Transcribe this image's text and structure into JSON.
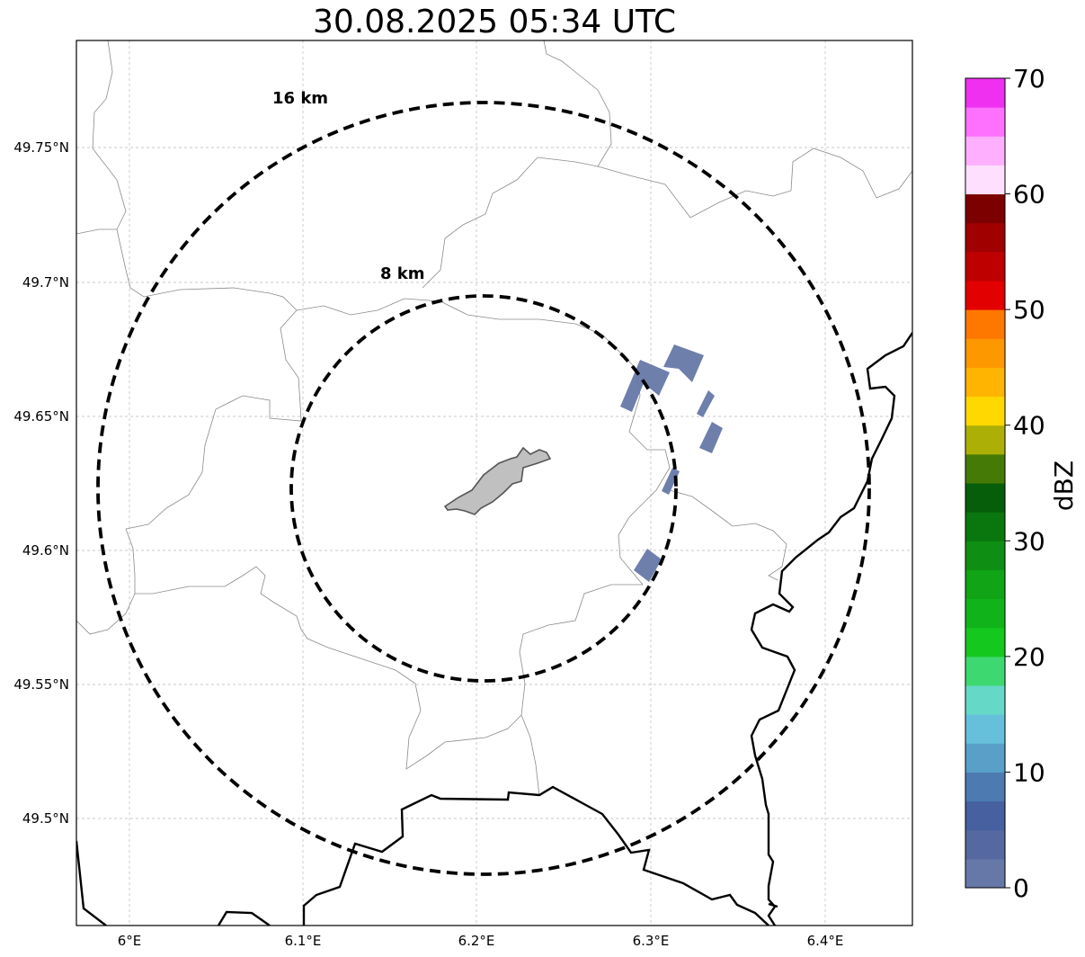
{
  "title": "30.08.2025 05:34 UTC",
  "map": {
    "lat_ticks": [
      "49.75°N",
      "49.7°N",
      "49.65°N",
      "49.6°N",
      "49.55°N",
      "49.5°N"
    ],
    "lon_ticks": [
      "6°E",
      "6.1°E",
      "6.2°E",
      "6.3°E",
      "6.4°E"
    ],
    "range_rings": [
      {
        "label": "16 km"
      },
      {
        "label": "8 km"
      }
    ]
  },
  "colorbar": {
    "label": "dBZ",
    "ticks": [
      "0",
      "10",
      "20",
      "30",
      "40",
      "50",
      "60",
      "70"
    ],
    "colors": [
      "#6678a8",
      "#5569a0",
      "#4660a0",
      "#4d7ab0",
      "#58a0c8",
      "#66c0dc",
      "#66d8c8",
      "#3ed870",
      "#14c81e",
      "#10b41a",
      "#10a416",
      "#0e8e12",
      "#0a760e",
      "#065e0a",
      "#467a06",
      "#acb006",
      "#fed800",
      "#feb400",
      "#fe9800",
      "#fe7800",
      "#e20000",
      "#be0000",
      "#a00000",
      "#7c0000",
      "#fee0fe",
      "#feb0fe",
      "#fe70fe",
      "#f030f0"
    ]
  },
  "radar_echoes": {
    "color": "#6678a8",
    "opacity": 0.95
  }
}
